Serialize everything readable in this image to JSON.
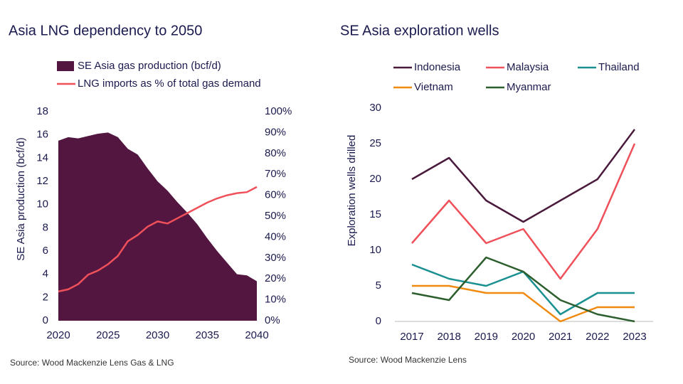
{
  "chart_data": [
    {
      "type": "area",
      "title": "Asia LNG dependency to 2050",
      "ylabel": "SE Asia production (bcf/d)",
      "source": "Source: Wood Mackenzie Lens Gas & LNG",
      "x": [
        2020,
        2021,
        2022,
        2023,
        2024,
        2025,
        2026,
        2027,
        2028,
        2029,
        2030,
        2031,
        2032,
        2033,
        2034,
        2035,
        2036,
        2037,
        2038,
        2039,
        2040
      ],
      "xlim": [
        2020,
        2040
      ],
      "xticks": [
        2020,
        2025,
        2030,
        2035,
        2040
      ],
      "ylim": [
        0,
        18
      ],
      "yticks": [
        0,
        2,
        4,
        6,
        8,
        10,
        12,
        14,
        16,
        18
      ],
      "y2lim": [
        0,
        100
      ],
      "y2ticks": [
        {
          "value": 0,
          "label": "0%"
        },
        {
          "value": 10,
          "label": "10%"
        },
        {
          "value": 20,
          "label": "20%"
        },
        {
          "value": 30,
          "label": "30%"
        },
        {
          "value": 40,
          "label": "40%"
        },
        {
          "value": 50,
          "label": "50%"
        },
        {
          "value": 60,
          "label": "60%"
        },
        {
          "value": 70,
          "label": "70%"
        },
        {
          "value": 80,
          "label": "80%"
        },
        {
          "value": 90,
          "label": "90%"
        },
        {
          "value": 100,
          "label": "100%"
        }
      ],
      "grid": false,
      "series": [
        {
          "name": "SE Asia gas production (bcf/d)",
          "type": "area",
          "color": "#521640",
          "values": [
            15.5,
            15.8,
            15.7,
            15.9,
            16.1,
            16.2,
            15.8,
            14.8,
            14.3,
            13.1,
            12.0,
            11.2,
            10.2,
            9.3,
            8.3,
            7.1,
            6.0,
            5.0,
            4.0,
            3.9,
            3.4
          ]
        },
        {
          "name": "LNG imports as % of total gas demand",
          "type": "line",
          "axis": "y2",
          "color": "#f0505a",
          "values": [
            14,
            15,
            17.5,
            22,
            24,
            27,
            31,
            38,
            41,
            45,
            47.5,
            46.5,
            49,
            51.5,
            54,
            56.5,
            58.5,
            60,
            61,
            61.5,
            64
          ]
        }
      ]
    },
    {
      "type": "line",
      "title": "SE Asia exploration wells",
      "ylabel": "Exploration wells drilled",
      "source": "Source: Wood Mackenzie Lens",
      "categories": [
        "2017",
        "2018",
        "2019",
        "2020",
        "2021",
        "2022",
        "2023"
      ],
      "ylim": [
        0,
        30
      ],
      "yticks": [
        0,
        5,
        10,
        15,
        20,
        25,
        30
      ],
      "grid": false,
      "series": [
        {
          "name": "Indonesia",
          "color": "#4a1a3d",
          "values": [
            20,
            23,
            17,
            14,
            17,
            20,
            27
          ]
        },
        {
          "name": "Malaysia",
          "color": "#f0505a",
          "values": [
            11,
            17,
            11,
            13,
            6,
            13,
            25
          ]
        },
        {
          "name": "Thailand",
          "color": "#1a9090",
          "values": [
            8,
            6,
            5,
            7,
            1,
            4,
            4
          ]
        },
        {
          "name": "Vietnam",
          "color": "#f08a10",
          "values": [
            5,
            5,
            4,
            4,
            0,
            2,
            2
          ]
        },
        {
          "name": "Myanmar",
          "color": "#2d5e2d",
          "values": [
            4,
            3,
            9,
            7,
            3,
            1,
            0
          ]
        }
      ]
    }
  ]
}
